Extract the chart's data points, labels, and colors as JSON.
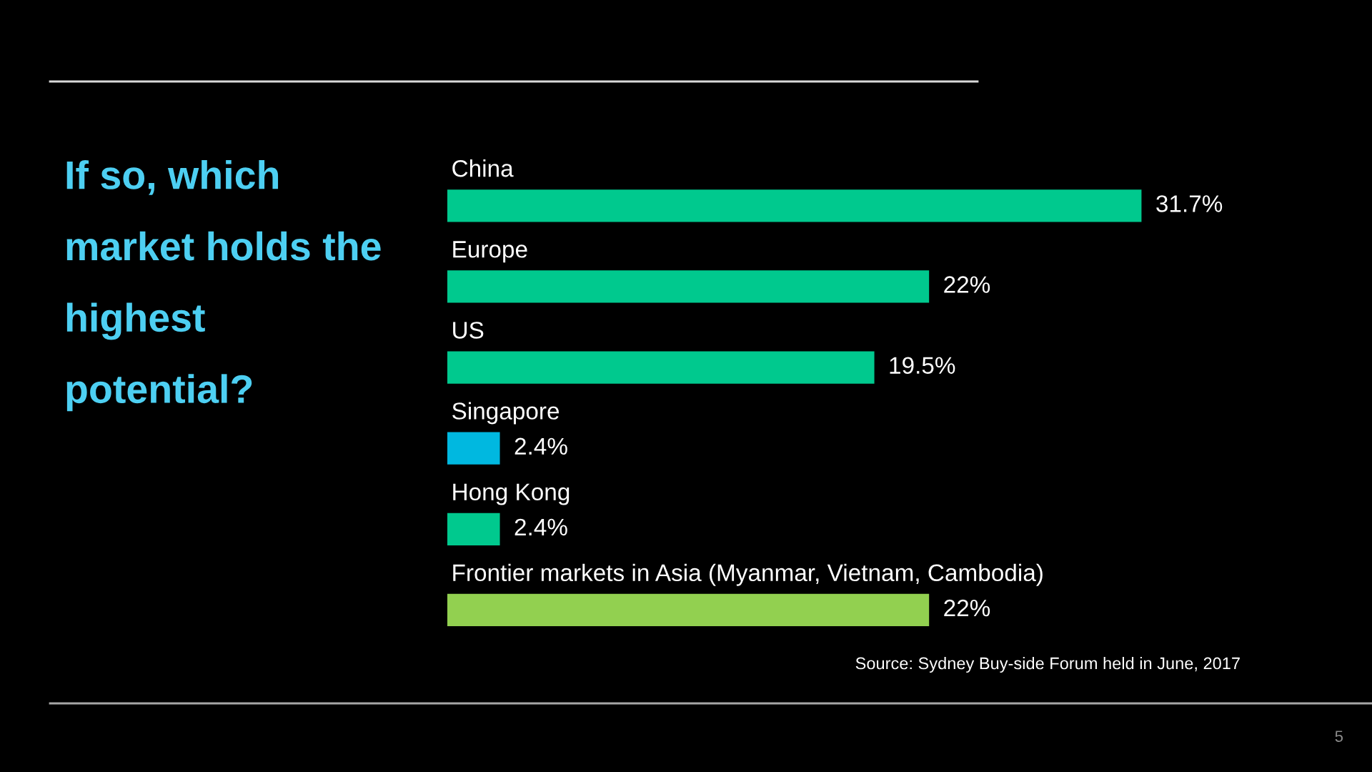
{
  "chart_data": {
    "type": "bar",
    "orientation": "horizontal",
    "title": "If so, which\nmarket holds the\nhighest\npotential?",
    "categories": [
      "China",
      "Europe",
      "US",
      "Singapore",
      "Hong Kong",
      "Frontier markets in Asia (Myanmar, Vietnam, Cambodia)"
    ],
    "values": [
      31.7,
      22,
      19.5,
      2.4,
      2.4,
      22
    ],
    "colors": [
      "#00c98e",
      "#00c98e",
      "#00c98e",
      "#00b8e0",
      "#00c98e",
      "#92d050"
    ],
    "value_labels": [
      "31.7%",
      "22%",
      "19.5%",
      "2.4%",
      "2.4%",
      "22%"
    ],
    "annotations": [
      "Source: Sydney Buy-side Forum held in June, 2017",
      "5"
    ]
  }
}
